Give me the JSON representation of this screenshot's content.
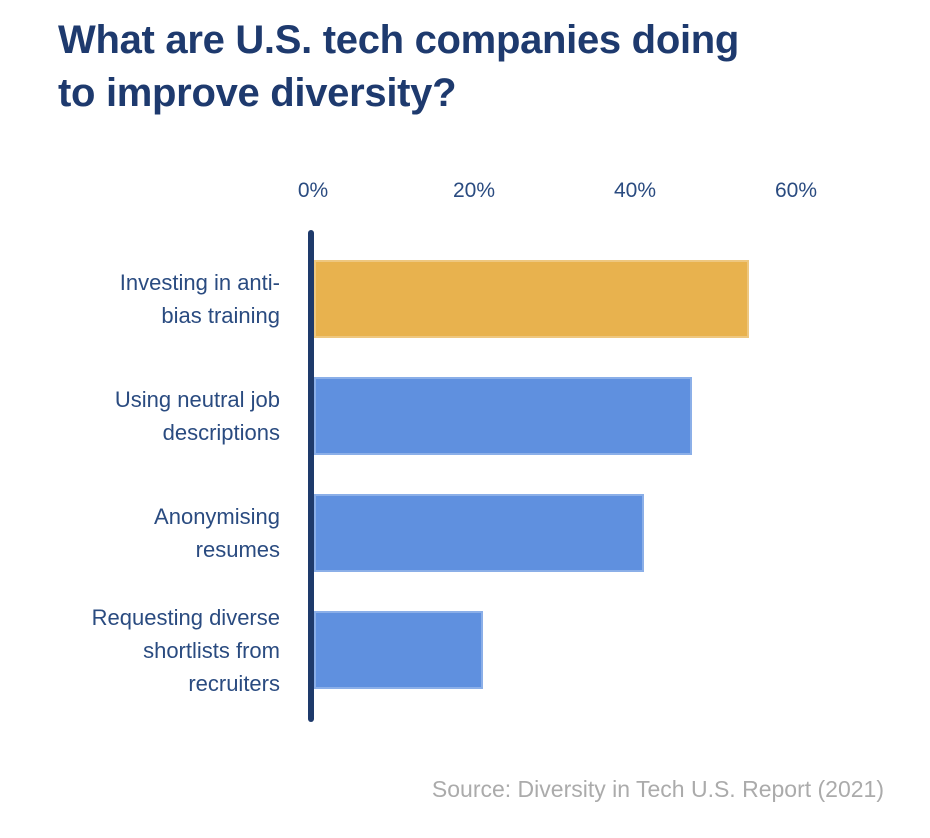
{
  "title": {
    "line1": "What are U.S. tech companies doing",
    "line2": "to improve diversity?"
  },
  "source_caption": "Source: Diversity in Tech U.S. Report (2021)",
  "colors": {
    "title": "#1E3A6E",
    "label": "#2A4B80",
    "axis": "#1E3A6B",
    "highlight_bar": "#E8B24E",
    "default_bar": "#5F90DF",
    "source": "#ABABAB",
    "background": "#FFFFFF"
  },
  "chart_data": {
    "type": "bar",
    "orientation": "horizontal",
    "title": "What are U.S. tech companies doing to improve diversity?",
    "categories": [
      "Investing in anti-bias training",
      "Using neutral job descriptions",
      "Anonymising resumes",
      "Requesting diverse shortlists from recruiters"
    ],
    "category_lines": [
      [
        "Investing in anti-",
        "bias training"
      ],
      [
        "Using neutral job",
        "descriptions"
      ],
      [
        "Anonymising",
        "resumes"
      ],
      [
        "Requesting diverse",
        "shortlists from",
        "recruiters"
      ]
    ],
    "values": [
      54,
      47,
      41,
      21
    ],
    "unit": "%",
    "bar_colors": [
      "#E8B24E",
      "#5F90DF",
      "#5F90DF",
      "#5F90DF"
    ],
    "x_ticks": [
      "0%",
      "20%",
      "40%",
      "60%"
    ],
    "x_tick_values": [
      0,
      20,
      40,
      60
    ],
    "xlim": [
      0,
      60
    ],
    "xlabel": "",
    "ylabel": "",
    "grid": false,
    "legend": false
  }
}
